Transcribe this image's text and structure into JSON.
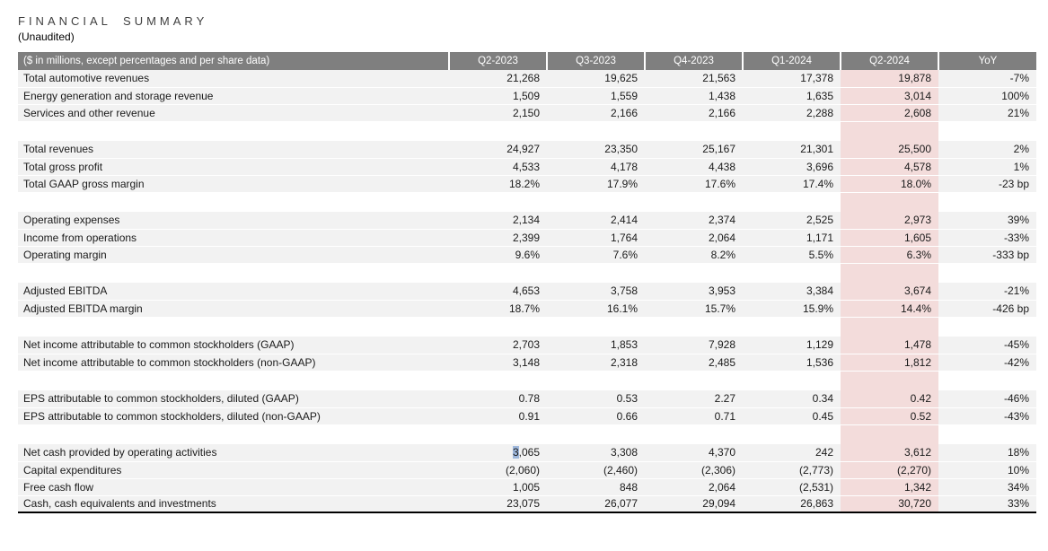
{
  "page": {
    "title": "FINANCIAL SUMMARY",
    "subtitle": "(Unaudited)"
  },
  "colors": {
    "header_bg": "#7f7f7f",
    "header_text": "#ffffff",
    "row_bg": "#f2f2f2",
    "highlight_col_bg": "#f3dcdb",
    "selection_bg": "#9fb8dc",
    "table_bottom_border": "#000000"
  },
  "table": {
    "header_label": "($ in millions, except percentages and per share data)",
    "columns": [
      "Q2-2023",
      "Q3-2023",
      "Q4-2023",
      "Q1-2024",
      "Q2-2024",
      "YoY"
    ],
    "highlight_column": "Q2-2024",
    "selection": {
      "group": 6,
      "row": 0,
      "col": 0,
      "prefix": "3"
    },
    "groups": [
      {
        "rows": [
          {
            "label": "Total automotive revenues",
            "values": [
              "21,268",
              "19,625",
              "21,563",
              "17,378",
              "19,878",
              "-7%"
            ]
          },
          {
            "label": "Energy generation and storage revenue",
            "values": [
              "1,509",
              "1,559",
              "1,438",
              "1,635",
              "3,014",
              "100%"
            ]
          },
          {
            "label": "Services and other revenue",
            "values": [
              "2,150",
              "2,166",
              "2,166",
              "2,288",
              "2,608",
              "21%"
            ]
          }
        ]
      },
      {
        "rows": [
          {
            "label": "Total revenues",
            "values": [
              "24,927",
              "23,350",
              "25,167",
              "21,301",
              "25,500",
              "2%"
            ]
          },
          {
            "label": "Total gross profit",
            "values": [
              "4,533",
              "4,178",
              "4,438",
              "3,696",
              "4,578",
              "1%"
            ]
          },
          {
            "label": "Total GAAP gross margin",
            "values": [
              "18.2%",
              "17.9%",
              "17.6%",
              "17.4%",
              "18.0%",
              "-23 bp"
            ]
          }
        ]
      },
      {
        "rows": [
          {
            "label": "Operating expenses",
            "values": [
              "2,134",
              "2,414",
              "2,374",
              "2,525",
              "2,973",
              "39%"
            ]
          },
          {
            "label": "Income from operations",
            "values": [
              "2,399",
              "1,764",
              "2,064",
              "1,171",
              "1,605",
              "-33%"
            ]
          },
          {
            "label": "Operating margin",
            "values": [
              "9.6%",
              "7.6%",
              "8.2%",
              "5.5%",
              "6.3%",
              "-333 bp"
            ]
          }
        ]
      },
      {
        "rows": [
          {
            "label": "Adjusted EBITDA",
            "values": [
              "4,653",
              "3,758",
              "3,953",
              "3,384",
              "3,674",
              "-21%"
            ]
          },
          {
            "label": "Adjusted EBITDA margin",
            "values": [
              "18.7%",
              "16.1%",
              "15.7%",
              "15.9%",
              "14.4%",
              "-426 bp"
            ]
          }
        ]
      },
      {
        "rows": [
          {
            "label": "Net income attributable to common stockholders (GAAP)",
            "values": [
              "2,703",
              "1,853",
              "7,928",
              "1,129",
              "1,478",
              "-45%"
            ]
          },
          {
            "label": "Net income attributable to common stockholders (non-GAAP)",
            "values": [
              "3,148",
              "2,318",
              "2,485",
              "1,536",
              "1,812",
              "-42%"
            ]
          }
        ]
      },
      {
        "rows": [
          {
            "label": "EPS attributable to common stockholders, diluted (GAAP)",
            "values": [
              "0.78",
              "0.53",
              "2.27",
              "0.34",
              "0.42",
              "-46%"
            ]
          },
          {
            "label": "EPS attributable to common stockholders, diluted (non-GAAP)",
            "values": [
              "0.91",
              "0.66",
              "0.71",
              "0.45",
              "0.52",
              "-43%"
            ]
          }
        ]
      },
      {
        "rows": [
          {
            "label": "Net cash provided by operating activities",
            "values": [
              "3,065",
              "3,308",
              "4,370",
              "242",
              "3,612",
              "18%"
            ]
          },
          {
            "label": "Capital expenditures",
            "values": [
              "(2,060)",
              "(2,460)",
              "(2,306)",
              "(2,773)",
              "(2,270)",
              "10%"
            ]
          },
          {
            "label": "Free cash flow",
            "values": [
              "1,005",
              "848",
              "2,064",
              "(2,531)",
              "1,342",
              "34%"
            ]
          },
          {
            "label": "Cash, cash equivalents and investments",
            "values": [
              "23,075",
              "26,077",
              "29,094",
              "26,863",
              "30,720",
              "33%"
            ]
          }
        ]
      }
    ]
  }
}
